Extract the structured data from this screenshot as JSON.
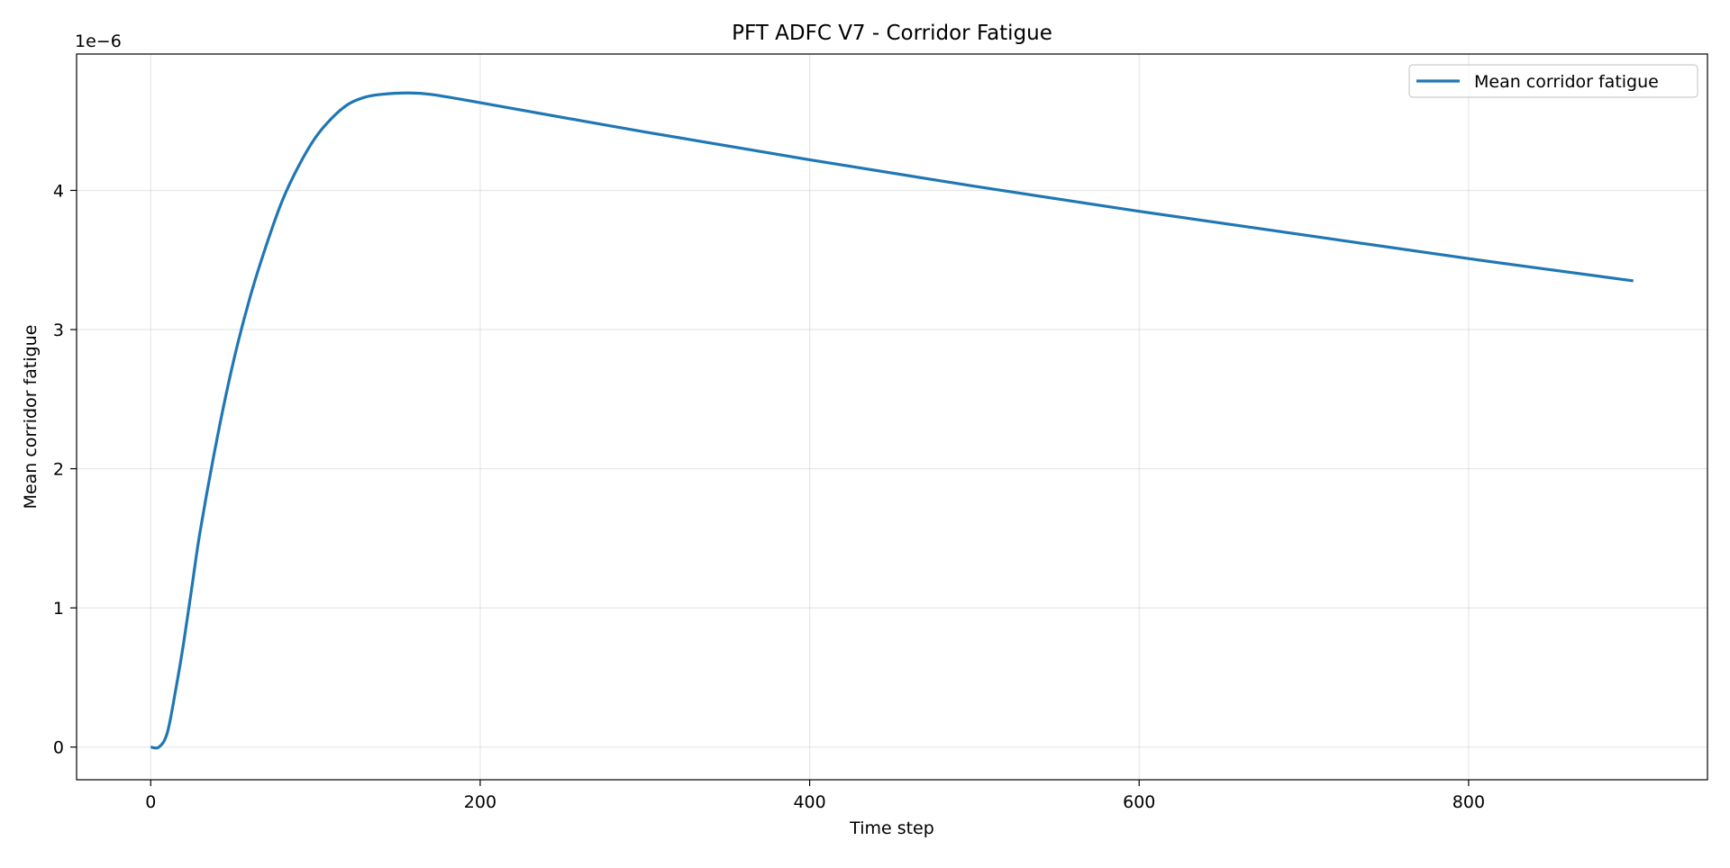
{
  "chart_data": {
    "type": "line",
    "title": "PFT ADFC V7 - Corridor Fatigue",
    "xlabel": "Time step",
    "ylabel": "Mean corridor fatigue",
    "y_offset_label": "1e−6",
    "y_scale_factor": 1e-06,
    "xlim": [
      -45,
      945
    ],
    "ylim": [
      -0.235,
      4.98
    ],
    "xticks": [
      0,
      200,
      400,
      600,
      800
    ],
    "xtick_labels": [
      "0",
      "200",
      "400",
      "600",
      "800"
    ],
    "yticks": [
      0,
      1,
      2,
      3,
      4
    ],
    "ytick_labels": [
      "0",
      "1",
      "2",
      "3",
      "4"
    ],
    "grid": true,
    "legend_position": "upper right",
    "series": [
      {
        "name": "Mean corridor fatigue",
        "color": "#1f77b4",
        "x": [
          0,
          5,
          10,
          15,
          20,
          25,
          30,
          40,
          50,
          60,
          70,
          80,
          90,
          100,
          110,
          120,
          130,
          140,
          155,
          170,
          200,
          300,
          400,
          500,
          600,
          700,
          800,
          900
        ],
        "y": [
          0.0,
          0.0,
          0.1,
          0.4,
          0.75,
          1.15,
          1.55,
          2.2,
          2.76,
          3.22,
          3.6,
          3.93,
          4.18,
          4.38,
          4.52,
          4.62,
          4.67,
          4.69,
          4.7,
          4.69,
          4.63,
          4.42,
          4.22,
          4.03,
          3.85,
          3.68,
          3.51,
          3.35
        ]
      }
    ]
  }
}
